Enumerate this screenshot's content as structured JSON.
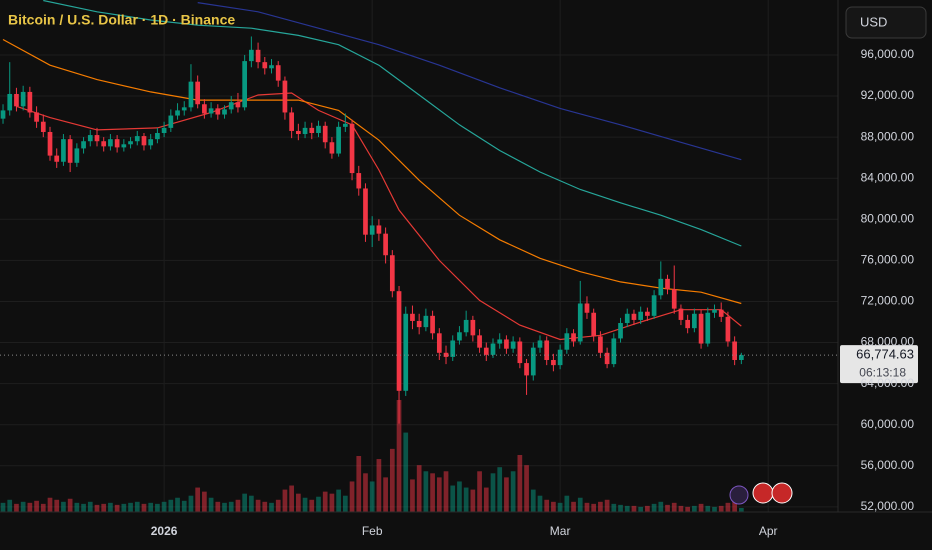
{
  "chart_data": {
    "type": "candlestick",
    "title": "Bitcoin / U.S. Dollar · 1D · Binance",
    "currency_button": "USD",
    "countdown": "06:13:18",
    "last_price": {
      "value": 66774.63,
      "label": "66,774.63"
    },
    "up_color": "#089981",
    "down_color": "#f23645",
    "grid": true,
    "ylim": [
      51500,
      101350
    ],
    "yticks": [
      {
        "value": 52000,
        "label": "52,000.00"
      },
      {
        "value": 56000,
        "label": "56,000.00"
      },
      {
        "value": 60000,
        "label": "60,000.00"
      },
      {
        "value": 64000,
        "label": "64,000.00"
      },
      {
        "value": 68000,
        "label": "68,000.00"
      },
      {
        "value": 72000,
        "label": "72,000.00"
      },
      {
        "value": 76000,
        "label": "76,000.00"
      },
      {
        "value": 80000,
        "label": "80,000.00"
      },
      {
        "value": 84000,
        "label": "84,000.00"
      },
      {
        "value": 88000,
        "label": "88,000.00"
      },
      {
        "value": 92000,
        "label": "92,000.00"
      },
      {
        "value": 96000,
        "label": "96,000.00"
      }
    ],
    "xlim": [
      -0.45,
      124.4
    ],
    "xticks": [
      {
        "value": 24,
        "label": "2026"
      },
      {
        "value": 55,
        "label": "Feb"
      },
      {
        "value": 83,
        "label": "Mar"
      },
      {
        "value": 114,
        "label": "Apr"
      }
    ],
    "open": [
      89800,
      90600,
      92200,
      91000,
      92400,
      90400,
      89500,
      88500,
      86200,
      85600,
      87800,
      85500,
      86900,
      87600,
      88200,
      87600,
      87100,
      87800,
      87000,
      87300,
      87600,
      88100,
      87200,
      87800,
      88400,
      88900,
      90100,
      90600,
      90900,
      93400,
      91200,
      90300,
      90800,
      90200,
      90700,
      91400,
      90900,
      95400,
      96500,
      95300,
      94700,
      95000,
      93500,
      90400,
      88600,
      88300,
      88900,
      88400,
      89100,
      87500,
      86400,
      89000,
      89300,
      84500,
      83000,
      78500,
      79400,
      78600,
      76500,
      73000,
      63300,
      70800,
      70100,
      69500,
      70600,
      68900,
      67000,
      66600,
      68200,
      69000,
      70200,
      68700,
      67500,
      66800,
      67900,
      68300,
      67400,
      68100,
      66000,
      64800,
      67500,
      68200,
      66300,
      65800,
      67300,
      68900,
      68100,
      71800,
      70900,
      68600,
      67000,
      65900,
      68400,
      69900,
      70800,
      70200,
      71000,
      70600,
      72600,
      74200,
      73200,
      71300,
      70200,
      69400,
      70800,
      67900,
      70900,
      71200,
      70500,
      68100,
      66300
    ],
    "high": [
      91200,
      95300,
      92800,
      93000,
      92900,
      91000,
      90200,
      89000,
      86900,
      88300,
      88200,
      87400,
      88000,
      88700,
      88900,
      88000,
      88300,
      88200,
      87800,
      88000,
      88600,
      88400,
      88300,
      88900,
      89500,
      90700,
      91300,
      91500,
      95100,
      94000,
      91700,
      91400,
      91200,
      91100,
      92000,
      92300,
      96000,
      97800,
      97200,
      95800,
      95600,
      95400,
      93900,
      90900,
      89300,
      89500,
      89400,
      89600,
      89500,
      88000,
      89500,
      90300,
      89700,
      85200,
      83500,
      80300,
      80000,
      79200,
      77000,
      73500,
      71500,
      71600,
      70800,
      71300,
      71100,
      69400,
      67700,
      68700,
      69600,
      71100,
      70600,
      69300,
      68000,
      68400,
      68900,
      68700,
      68600,
      68500,
      66400,
      68000,
      68700,
      68600,
      66900,
      67800,
      69400,
      69300,
      74000,
      72500,
      71300,
      69100,
      67500,
      68900,
      70400,
      71300,
      71200,
      71500,
      71400,
      73100,
      75900,
      74600,
      75500,
      71700,
      70700,
      71300,
      71200,
      71400,
      71700,
      71900,
      71000,
      68600,
      67000
    ],
    "low": [
      89300,
      90100,
      90500,
      90600,
      89900,
      88900,
      88000,
      85700,
      85000,
      85200,
      84600,
      85100,
      86400,
      87100,
      87100,
      86600,
      86700,
      86500,
      86600,
      86900,
      87200,
      86700,
      86800,
      87400,
      88000,
      88500,
      89700,
      90100,
      90500,
      90800,
      89800,
      89900,
      89700,
      89800,
      90300,
      90400,
      90600,
      94800,
      94700,
      94100,
      94200,
      92900,
      89700,
      87900,
      87700,
      87900,
      87800,
      88000,
      86900,
      85900,
      86100,
      88500,
      83800,
      82300,
      77800,
      77300,
      77900,
      75700,
      72400,
      60100,
      62800,
      69300,
      68800,
      69100,
      68300,
      66300,
      65900,
      66200,
      67800,
      68600,
      68100,
      67000,
      66200,
      66500,
      67400,
      66900,
      67000,
      65500,
      62900,
      64300,
      67000,
      65800,
      65200,
      65400,
      66900,
      67600,
      67800,
      70300,
      68100,
      66500,
      65500,
      65600,
      68000,
      69500,
      69700,
      69800,
      70100,
      70300,
      72200,
      72700,
      70800,
      69700,
      68900,
      69000,
      67400,
      67600,
      70400,
      70000,
      67600,
      65800,
      65900
    ],
    "close": [
      90600,
      92200,
      91000,
      92400,
      90400,
      89500,
      88500,
      86200,
      85600,
      87800,
      85500,
      86900,
      87600,
      88200,
      87600,
      87100,
      87800,
      87000,
      87300,
      87600,
      88100,
      87200,
      87800,
      88400,
      88900,
      90100,
      90600,
      90900,
      93400,
      91200,
      90300,
      90800,
      90200,
      90700,
      91400,
      90900,
      95400,
      96500,
      95300,
      94700,
      95000,
      93500,
      90400,
      88600,
      88300,
      88900,
      88400,
      89100,
      87500,
      86400,
      89000,
      89300,
      84500,
      83000,
      78500,
      79400,
      78600,
      76500,
      73000,
      63300,
      70800,
      70100,
      69500,
      70600,
      68900,
      67000,
      66600,
      68200,
      69000,
      70200,
      68700,
      67500,
      66800,
      67900,
      68300,
      67400,
      68100,
      66000,
      64800,
      67500,
      68200,
      66300,
      65800,
      67300,
      68900,
      68100,
      71800,
      70900,
      68600,
      67000,
      65900,
      68400,
      69900,
      70800,
      70200,
      71000,
      70600,
      72600,
      74200,
      73200,
      71300,
      70200,
      69400,
      70800,
      67900,
      70900,
      71200,
      70500,
      68100,
      66300,
      66774.63
    ],
    "volume": [
      9,
      12,
      8,
      10,
      9,
      11,
      8,
      14,
      12,
      10,
      13,
      9,
      8,
      10,
      7,
      8,
      9,
      7,
      8,
      9,
      10,
      8,
      9,
      8,
      10,
      12,
      14,
      11,
      16,
      24,
      20,
      14,
      10,
      9,
      10,
      12,
      18,
      16,
      12,
      10,
      9,
      12,
      22,
      26,
      18,
      14,
      12,
      15,
      20,
      18,
      22,
      16,
      30,
      55,
      38,
      30,
      52,
      34,
      62,
      110,
      78,
      32,
      46,
      40,
      38,
      34,
      40,
      26,
      30,
      24,
      22,
      40,
      24,
      38,
      44,
      34,
      40,
      56,
      46,
      22,
      16,
      12,
      10,
      9,
      16,
      10,
      14,
      9,
      8,
      10,
      12,
      8,
      7,
      6,
      6,
      5,
      6,
      8,
      10,
      7,
      9,
      6,
      5,
      6,
      8,
      6,
      5,
      6,
      9,
      10,
      4
    ],
    "ma_lines": [
      {
        "color": "#e53935",
        "x": [
          2,
          7,
          14,
          23,
          31,
          38,
          43,
          47,
          52,
          56,
          59,
          65,
          71,
          77,
          83,
          89,
          95,
          101,
          107,
          110
        ],
        "values": [
          91000,
          89900,
          88700,
          88900,
          90400,
          92100,
          92300,
          90600,
          89200,
          84800,
          80900,
          76000,
          72100,
          69700,
          68300,
          68700,
          70000,
          71200,
          71200,
          69600
        ]
      },
      {
        "color": "#f57c00",
        "x": [
          0,
          7,
          14,
          22,
          29,
          37,
          44,
          50,
          56,
          62,
          68,
          74,
          80,
          86,
          92,
          98,
          104,
          110
        ],
        "values": [
          97500,
          95000,
          93600,
          92400,
          91600,
          91600,
          91600,
          90600,
          87700,
          83800,
          80400,
          78000,
          76200,
          74900,
          73900,
          73300,
          72900,
          71800
        ]
      },
      {
        "color": "#26a69a",
        "x": [
          6,
          14,
          22,
          29,
          37,
          44,
          50,
          56,
          62,
          68,
          74,
          80,
          86,
          92,
          98,
          104,
          110
        ],
        "values": [
          101300,
          100200,
          99400,
          98900,
          98600,
          97900,
          97000,
          95000,
          92100,
          89200,
          86700,
          84600,
          82900,
          81600,
          80400,
          79000,
          77400
        ]
      },
      {
        "color": "#283593",
        "x": [
          29,
          38,
          47,
          56,
          65,
          74,
          83,
          92,
          101,
          110
        ],
        "values": [
          101100,
          100200,
          98600,
          97000,
          95000,
          92800,
          90800,
          89200,
          87500,
          85800
        ]
      }
    ]
  }
}
